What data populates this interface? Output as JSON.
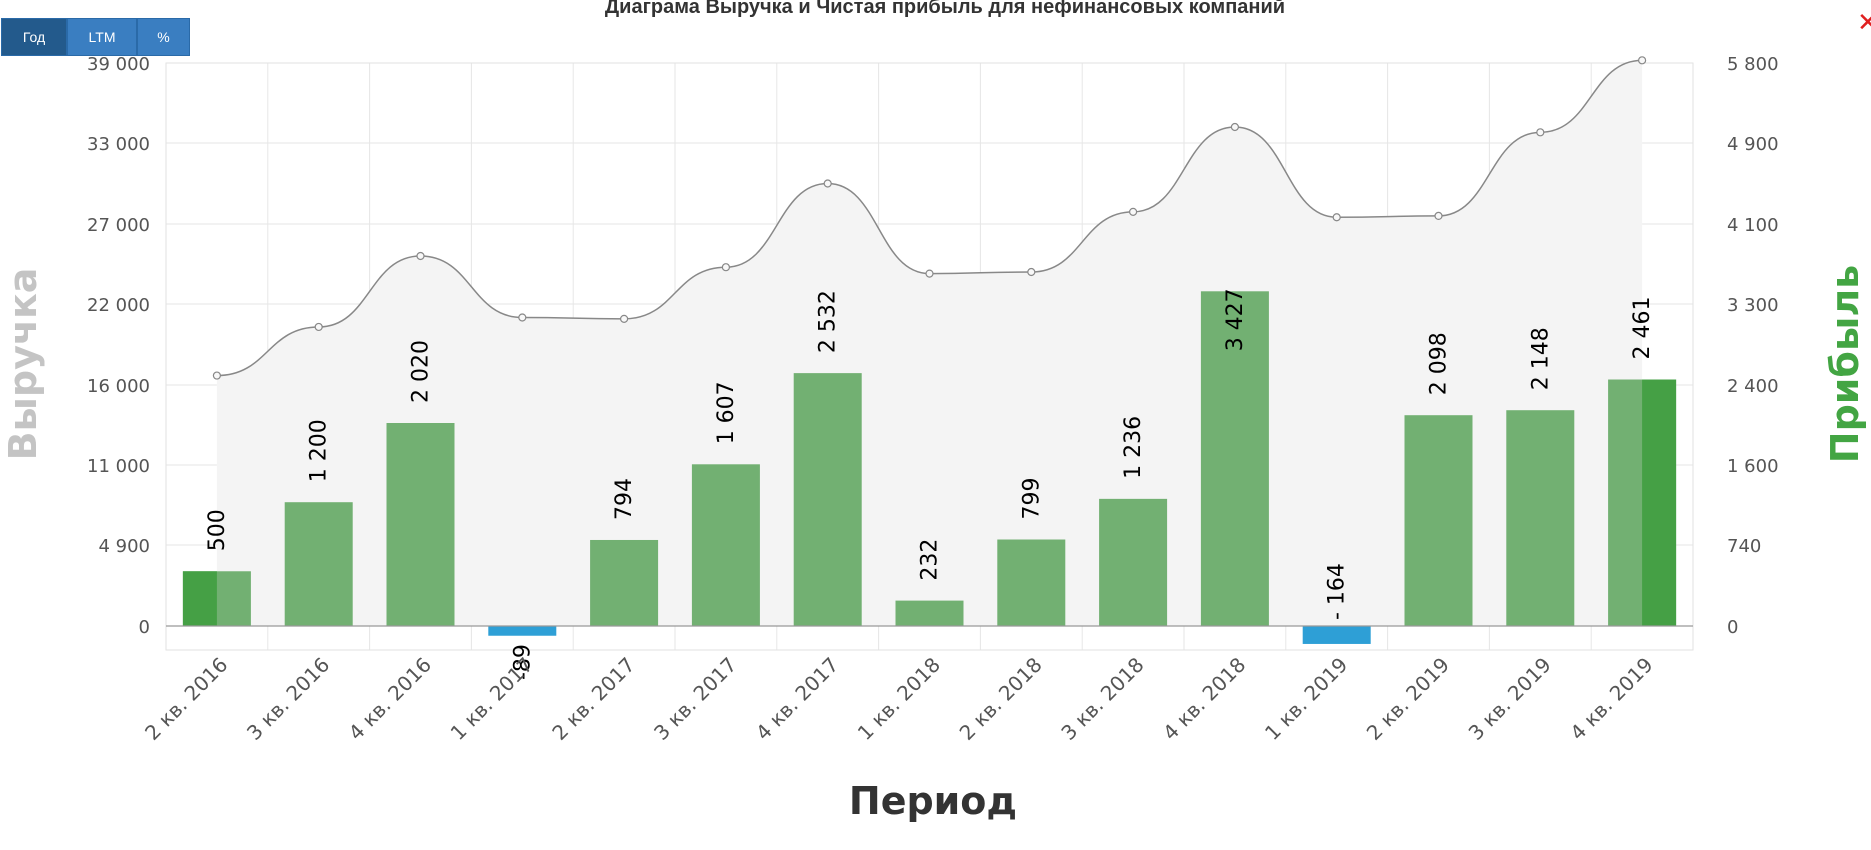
{
  "ui": {
    "title": "Диаграма Выручка и Чистая прибыль для нефинансовых компаний",
    "buttons": [
      "Год",
      "LTM",
      "%"
    ],
    "close_icon": "close-icon"
  },
  "chart_data": {
    "type": "bar+area",
    "categories": [
      "2 кв. 2016",
      "3 кв. 2016",
      "4 кв. 2016",
      "1 кв. 2017",
      "2 кв. 2017",
      "3 кв. 2017",
      "4 кв. 2017",
      "1 кв. 2018",
      "2 кв. 2018",
      "3 кв. 2018",
      "4 кв. 2018",
      "1 кв. 2019",
      "2 кв. 2019",
      "3 кв. 2019",
      "4 кв. 2019"
    ],
    "xlabel": "Период",
    "left_axis": {
      "label": "Выручка",
      "ticks": [
        "0",
        "4 900",
        "11 000",
        "16 000",
        "22 000",
        "27 000",
        "33 000",
        "39 000"
      ]
    },
    "right_axis": {
      "label": "Прибыль",
      "ticks": [
        "0",
        "740",
        "1 600",
        "2 400",
        "3 300",
        "4 100",
        "4 900",
        "5 800"
      ]
    },
    "series": [
      {
        "name": "Выручка",
        "type": "area",
        "values": [
          16700,
          20300,
          25000,
          21000,
          20900,
          24300,
          30000,
          23900,
          24000,
          27900,
          34200,
          27500,
          27600,
          33800,
          39200
        ]
      },
      {
        "name": "Прибыль",
        "type": "bar",
        "values": [
          500,
          1200,
          2020,
          -89,
          794,
          1607,
          2532,
          232,
          799,
          1236,
          3427,
          -164,
          2098,
          2148,
          2461
        ],
        "labels": [
          "500",
          "1 200",
          "2 020",
          "-89",
          "794",
          "1 607",
          "2 532",
          "232",
          "799",
          "1 236",
          "3 427",
          "- 164",
          "2 098",
          "2 148",
          "2 461"
        ]
      }
    ],
    "colors": {
      "bar_positive": "#72b072",
      "bar_negative": "#2e9fd6",
      "bar_accent": "#45a045",
      "area_fill": "#f4f4f4",
      "line": "#888888",
      "grid": "#e6e6e6",
      "left_axis_label": "#c4c4c4",
      "right_axis_label": "#43a543"
    },
    "grid": true
  }
}
